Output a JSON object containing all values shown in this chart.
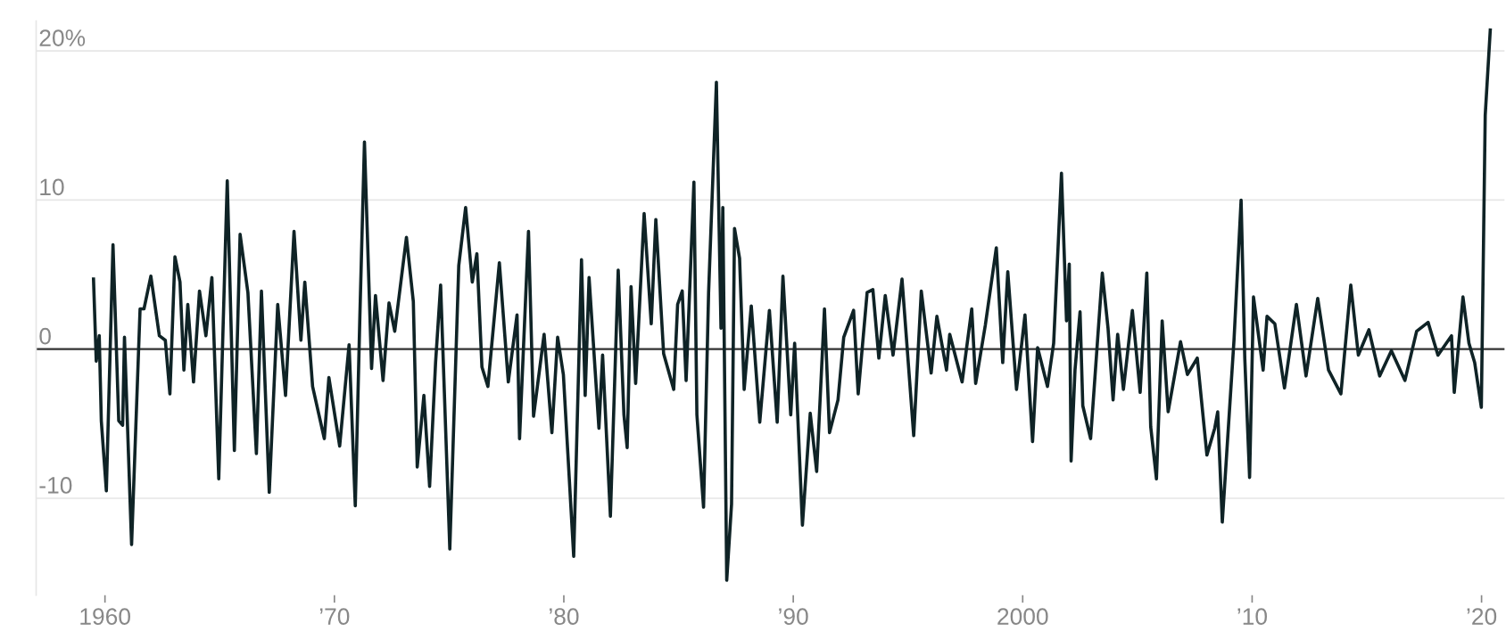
{
  "chart_data": {
    "type": "line",
    "x": [
      1959.5,
      1959.62,
      1959.75,
      1959.84,
      1960.06,
      1960.35,
      1960.6,
      1960.77,
      1960.85,
      1961.16,
      1961.53,
      1961.7,
      1962.0,
      1962.37,
      1962.63,
      1962.83,
      1963.05,
      1963.27,
      1963.44,
      1963.61,
      1963.86,
      1964.12,
      1964.4,
      1964.66,
      1964.96,
      1965.33,
      1965.64,
      1965.89,
      1966.23,
      1966.6,
      1966.82,
      1967.16,
      1967.53,
      1967.87,
      1968.24,
      1968.54,
      1968.71,
      1969.05,
      1969.56,
      1969.76,
      1970.23,
      1970.64,
      1970.91,
      1971.11,
      1971.31,
      1971.62,
      1971.79,
      1972.12,
      1972.38,
      1972.63,
      1973.14,
      1973.44,
      1973.61,
      1973.9,
      1974.15,
      1974.41,
      1974.63,
      1975.03,
      1975.42,
      1975.72,
      1976.01,
      1976.21,
      1976.43,
      1976.69,
      1977.19,
      1977.58,
      1977.96,
      1978.07,
      1978.46,
      1978.68,
      1979.14,
      1979.48,
      1979.73,
      1979.98,
      1980.43,
      1980.77,
      1980.93,
      1981.1,
      1981.53,
      1981.69,
      1982.03,
      1982.37,
      1982.62,
      1982.76,
      1982.93,
      1983.13,
      1983.5,
      1983.81,
      1984.01,
      1984.35,
      1984.79,
      1984.96,
      1985.16,
      1985.33,
      1985.67,
      1985.8,
      1986.09,
      1986.31,
      1986.65,
      1986.85,
      1986.93,
      1987.1,
      1987.31,
      1987.44,
      1987.66,
      1987.86,
      1988.17,
      1988.54,
      1988.96,
      1989.3,
      1989.55,
      1989.89,
      1990.06,
      1990.4,
      1990.74,
      1991.02,
      1991.36,
      1991.58,
      1991.95,
      1992.2,
      1992.63,
      1992.83,
      1993.22,
      1993.47,
      1993.73,
      1994.01,
      1994.35,
      1994.74,
      1995.25,
      1995.58,
      1996.01,
      1996.26,
      1996.68,
      1996.82,
      1997.36,
      1997.78,
      1997.95,
      1998.37,
      1998.85,
      1999.13,
      1999.35,
      1999.73,
      2000.1,
      2000.43,
      2000.65,
      2001.08,
      2001.35,
      2001.69,
      2001.91,
      2002.03,
      2002.11,
      2002.28,
      2002.5,
      2002.62,
      2002.96,
      2003.47,
      2003.72,
      2003.94,
      2004.14,
      2004.39,
      2004.78,
      2005.12,
      2005.41,
      2005.58,
      2005.83,
      2006.08,
      2006.34,
      2006.88,
      2007.18,
      2007.61,
      2008.03,
      2008.37,
      2008.5,
      2008.7,
      2009.21,
      2009.52,
      2009.68,
      2009.89,
      2010.06,
      2010.48,
      2010.65,
      2010.99,
      2011.41,
      2011.93,
      2012.35,
      2012.86,
      2013.33,
      2013.87,
      2014.3,
      2014.63,
      2015.09,
      2015.56,
      2016.07,
      2016.66,
      2017.17,
      2017.67,
      2018.1,
      2018.69,
      2018.81,
      2019.19,
      2019.45,
      2019.7,
      2019.99,
      2020.16,
      2020.38
    ],
    "series": [
      {
        "color": "#0f2326",
        "values": [
          4.7,
          -0.8,
          0.9,
          -4.8,
          -9.5,
          7.0,
          -4.8,
          -5.1,
          0.8,
          -13.1,
          2.7,
          2.7,
          4.9,
          0.9,
          0.6,
          -3.0,
          6.2,
          4.5,
          -1.4,
          3.0,
          -2.2,
          3.9,
          0.9,
          4.8,
          -8.7,
          11.3,
          -6.8,
          7.7,
          3.8,
          -7.0,
          3.9,
          -9.6,
          3.0,
          -3.1,
          7.9,
          0.6,
          4.5,
          -2.5,
          -6.0,
          -1.9,
          -6.5,
          0.3,
          -10.5,
          2.2,
          13.9,
          -1.3,
          3.6,
          -2.1,
          3.1,
          1.2,
          7.5,
          3.2,
          -7.9,
          -3.1,
          -9.2,
          -0.9,
          4.3,
          -13.4,
          5.6,
          9.5,
          4.5,
          6.4,
          -1.2,
          -2.5,
          5.8,
          -2.2,
          2.3,
          -6.0,
          7.9,
          -4.5,
          1.0,
          -5.6,
          0.8,
          -1.7,
          -13.9,
          6.0,
          -3.1,
          4.8,
          -5.3,
          -0.4,
          -11.2,
          5.3,
          -4.4,
          -6.6,
          4.2,
          -2.3,
          9.1,
          1.7,
          8.7,
          -0.3,
          -2.7,
          3.0,
          3.9,
          -2.1,
          11.2,
          -4.4,
          -10.6,
          3.8,
          17.9,
          1.4,
          9.5,
          -15.5,
          -10.4,
          8.1,
          6.1,
          -2.7,
          2.9,
          -4.9,
          2.6,
          -4.9,
          4.9,
          -4.4,
          0.4,
          -11.8,
          -4.3,
          -8.2,
          2.7,
          -5.6,
          -3.4,
          0.8,
          2.6,
          -3.0,
          3.8,
          4.0,
          -0.6,
          3.6,
          -0.4,
          4.7,
          -5.8,
          3.9,
          -1.6,
          2.2,
          -1.4,
          1.0,
          -2.2,
          2.7,
          -2.3,
          1.6,
          6.8,
          -0.9,
          5.2,
          -2.7,
          2.3,
          -6.2,
          0.1,
          -2.5,
          0.4,
          11.8,
          1.9,
          5.7,
          -7.5,
          -1.4,
          2.5,
          -3.8,
          -6.0,
          5.1,
          1.4,
          -3.4,
          1.0,
          -2.7,
          2.6,
          -2.9,
          5.1,
          -5.2,
          -8.7,
          1.9,
          -4.2,
          0.5,
          -1.7,
          -0.6,
          -7.1,
          -5.3,
          -4.2,
          -11.6,
          0.6,
          10.0,
          -0.6,
          -8.6,
          3.5,
          -1.4,
          2.2,
          1.7,
          -2.6,
          3.0,
          -1.8,
          3.4,
          -1.4,
          -3.0,
          4.3,
          -0.4,
          1.3,
          -1.8,
          -0.1,
          -2.1,
          1.2,
          1.8,
          -0.4,
          0.9,
          -2.9,
          3.5,
          0.4,
          -0.9,
          -3.9,
          15.7,
          21.4
        ]
      }
    ],
    "xlim": [
      1957,
      2021
    ],
    "xticks": [
      1960,
      {
        "value": 1970,
        "label": "’70"
      },
      {
        "value": 1980,
        "label": "’80"
      },
      {
        "value": 1990,
        "label": "’90"
      },
      2000,
      {
        "value": 2010,
        "label": "’10"
      },
      {
        "value": 2020,
        "label": "’20"
      }
    ],
    "ylim": [
      -16.5,
      22
    ],
    "yticks": [
      {
        "value": -10,
        "label": "-10"
      },
      0,
      10,
      {
        "value": 20,
        "label": "20%"
      }
    ],
    "grid": "y",
    "marker": "none",
    "line_style": "solid",
    "ref_lines": [
      {
        "axis": "y",
        "value": 0,
        "color": "#333333"
      }
    ]
  }
}
